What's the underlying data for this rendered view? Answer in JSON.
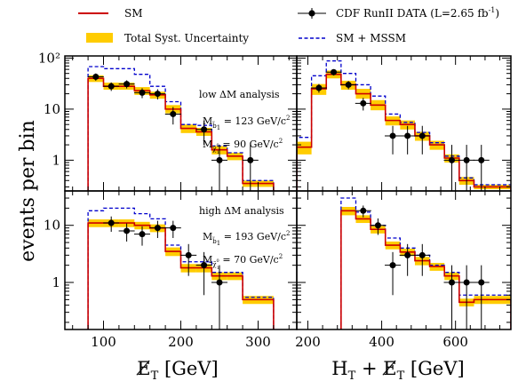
{
  "legend": {
    "sm": "SM",
    "syst": "Total Syst. Uncertainty",
    "data": "CDF RunII DATA (L=2.65 fb",
    "data_sup": "-1",
    "data_close": ")",
    "mssm": "SM + MSSM"
  },
  "y_axis_label": "events per bin",
  "x_axis_titles": {
    "left": "E̸",
    "left_sub": "T",
    "left_unit": " [GeV]",
    "right_pre": "H",
    "right_pre_sub": "T",
    "right_mid": " + E̸",
    "right_mid_sub": "T",
    "right_unit": " [GeV]"
  },
  "annotations": {
    "top": {
      "analysis": "low ΔM analysis",
      "m_sb_label": "M",
      "m_sb_sub": "b̃",
      "m_sb_subsub": "1",
      "m_sb_value": " = 123 GeV/c",
      "m_sb_sup": "2",
      "m_chi_label": "M",
      "m_chi_sub": "χ̃",
      "m_chi_subsup": "0",
      "m_chi_subsub": "1",
      "m_chi_value": " = 90 GeV/c",
      "m_chi_sup": "2"
    },
    "bottom": {
      "analysis": "high ΔM analysis",
      "m_sb_label": "M",
      "m_sb_sub": "b̃",
      "m_sb_subsub": "1",
      "m_sb_value": " = 193 GeV/c",
      "m_sb_sup": "2",
      "m_chi_label": "M",
      "m_chi_sub": "χ̃",
      "m_chi_subsup": "0",
      "m_chi_subsub": "1",
      "m_chi_value": " = 70 GeV/c",
      "m_chi_sup": "2"
    }
  },
  "colors": {
    "sm": "#cc0000",
    "syst": "#ffcc00",
    "mssm": "#0000cc",
    "data": "#000000"
  },
  "chart_data": [
    {
      "panel": "top-left",
      "type": "histogram",
      "y_scale": "log",
      "xlim": [
        50,
        350
      ],
      "ylim": [
        0.25,
        110
      ],
      "x_ticks": [
        100,
        200,
        300
      ],
      "x_tick_labels": [],
      "y_ticks": [
        1,
        10,
        100
      ],
      "y_tick_labels": [
        "1",
        "10",
        "10²"
      ],
      "bin_edges": [
        80,
        100,
        120,
        140,
        160,
        180,
        200,
        220,
        240,
        260,
        280,
        300,
        320
      ],
      "sm": [
        40,
        28,
        28,
        23,
        19,
        10,
        4.2,
        3.6,
        1.6,
        1.2,
        0.35,
        0.35
      ],
      "syst_low": [
        34,
        24,
        24,
        19,
        16,
        8.3,
        3.4,
        3.0,
        1.3,
        1.0,
        0.3,
        0.3
      ],
      "syst_high": [
        46,
        33,
        33,
        27,
        22,
        12,
        5.0,
        4.3,
        1.9,
        1.4,
        0.4,
        0.4
      ],
      "sm_mssm": [
        68,
        62,
        62,
        48,
        28,
        14,
        5.0,
        4.8,
        1.9,
        1.4,
        0.4,
        0.4
      ],
      "data": [
        {
          "x": 90,
          "y": 43,
          "err": 7
        },
        {
          "x": 110,
          "y": 28,
          "err": 5.3
        },
        {
          "x": 130,
          "y": 31,
          "err": 5.6
        },
        {
          "x": 150,
          "y": 21,
          "err": 4.6
        },
        {
          "x": 170,
          "y": 20,
          "err": 4.5
        },
        {
          "x": 190,
          "y": 8,
          "err": 3
        },
        {
          "x": 230,
          "y": 4,
          "err": 2
        },
        {
          "x": 250,
          "y": 1,
          "err": 1
        },
        {
          "x": 290,
          "y": 1,
          "err": 1
        }
      ]
    },
    {
      "panel": "top-right",
      "type": "histogram",
      "y_scale": "log",
      "xlim": [
        170,
        750
      ],
      "ylim": [
        0.25,
        110
      ],
      "x_ticks": [
        200,
        400,
        600
      ],
      "x_tick_labels": [],
      "y_ticks": [
        1,
        10,
        100
      ],
      "y_tick_labels": [],
      "bin_edges": [
        170,
        210,
        250,
        290,
        330,
        370,
        410,
        450,
        490,
        530,
        570,
        610,
        650,
        690,
        750
      ],
      "sm": [
        1.8,
        25,
        48,
        30,
        20,
        12,
        6,
        5,
        3,
        2,
        1.1,
        0.4,
        0.3,
        0.3
      ],
      "syst_low": [
        1.3,
        19,
        40,
        24,
        16,
        9.5,
        4.8,
        4.0,
        2.4,
        1.6,
        0.9,
        0.33,
        0.27,
        0.27
      ],
      "syst_high": [
        2.3,
        31,
        57,
        36,
        25,
        15,
        7.2,
        6.0,
        3.6,
        2.4,
        1.3,
        0.47,
        0.33,
        0.33
      ],
      "sm_mssm": [
        2.8,
        45,
        88,
        50,
        30,
        18,
        8,
        5.5,
        3.5,
        2.2,
        1.2,
        0.45,
        0.33,
        0.33
      ],
      "data": [
        {
          "x": 230,
          "y": 26,
          "err": 5
        },
        {
          "x": 270,
          "y": 53,
          "err": 7.3
        },
        {
          "x": 310,
          "y": 30,
          "err": 5.5
        },
        {
          "x": 350,
          "y": 13,
          "err": 3.6
        },
        {
          "x": 430,
          "y": 3,
          "err": 1.7
        },
        {
          "x": 470,
          "y": 3,
          "err": 1.7
        },
        {
          "x": 510,
          "y": 3,
          "err": 1.7
        },
        {
          "x": 590,
          "y": 1,
          "err": 1
        },
        {
          "x": 630,
          "y": 1,
          "err": 1
        },
        {
          "x": 670,
          "y": 1,
          "err": 1
        }
      ]
    },
    {
      "panel": "bottom-left",
      "type": "histogram",
      "y_scale": "log",
      "xlim": [
        50,
        350
      ],
      "ylim": [
        0.15,
        40
      ],
      "x_ticks": [
        100,
        200,
        300
      ],
      "x_tick_labels": [
        "100",
        "200",
        "300"
      ],
      "y_ticks": [
        1,
        10
      ],
      "y_tick_labels": [
        "1",
        "10"
      ],
      "bin_edges": [
        80,
        100,
        120,
        140,
        160,
        180,
        200,
        220,
        240,
        260,
        280,
        300,
        320
      ],
      "sm": [
        11,
        11,
        11,
        10,
        9,
        3.5,
        1.8,
        1.8,
        1.3,
        1.3,
        0.5,
        0.5
      ],
      "syst_low": [
        9.3,
        9.3,
        9.3,
        8.5,
        7.6,
        2.9,
        1.5,
        1.5,
        1.1,
        1.1,
        0.42,
        0.42
      ],
      "syst_high": [
        12.7,
        12.7,
        12.7,
        11.5,
        10.4,
        4.1,
        2.1,
        2.1,
        1.5,
        1.5,
        0.58,
        0.58
      ],
      "sm_mssm": [
        18,
        20,
        20,
        16,
        13,
        4.5,
        2.3,
        2.3,
        1.5,
        1.5,
        0.55,
        0.55
      ],
      "data": [
        {
          "x": 110,
          "y": 11,
          "err": 3.3
        },
        {
          "x": 130,
          "y": 8,
          "err": 2.8
        },
        {
          "x": 150,
          "y": 7,
          "err": 2.6
        },
        {
          "x": 170,
          "y": 9,
          "err": 3
        },
        {
          "x": 190,
          "y": 9,
          "err": 3
        },
        {
          "x": 210,
          "y": 3,
          "err": 1.7
        },
        {
          "x": 230,
          "y": 2,
          "err": 1.4
        },
        {
          "x": 250,
          "y": 1,
          "err": 1
        }
      ]
    },
    {
      "panel": "bottom-right",
      "type": "histogram",
      "y_scale": "log",
      "xlim": [
        170,
        750
      ],
      "ylim": [
        0.15,
        40
      ],
      "x_ticks": [
        200,
        400,
        600
      ],
      "x_tick_labels": [
        "200",
        "400",
        "600"
      ],
      "y_ticks": [
        1,
        10
      ],
      "y_tick_labels": [],
      "bin_edges": [
        290,
        330,
        370,
        410,
        450,
        490,
        530,
        570,
        610,
        650,
        690,
        750
      ],
      "sm": [
        18,
        13,
        8.5,
        4.5,
        3.4,
        2.4,
        1.9,
        1.3,
        0.45,
        0.5,
        0.5
      ],
      "syst_low": [
        15,
        11,
        7.2,
        3.8,
        2.9,
        2.0,
        1.6,
        1.1,
        0.38,
        0.42,
        0.42
      ],
      "syst_high": [
        21,
        15,
        9.8,
        5.2,
        3.9,
        2.8,
        2.2,
        1.5,
        0.52,
        0.58,
        0.58
      ],
      "sm_mssm": [
        30,
        17,
        10,
        6,
        4,
        3,
        2,
        1.5,
        0.6,
        0.6,
        0.6
      ],
      "data": [
        {
          "x": 350,
          "y": 18,
          "err": 4.2
        },
        {
          "x": 390,
          "y": 10,
          "err": 3.2
        },
        {
          "x": 430,
          "y": 2,
          "err": 1.4
        },
        {
          "x": 470,
          "y": 3,
          "err": 1.7
        },
        {
          "x": 510,
          "y": 3,
          "err": 1.7
        },
        {
          "x": 590,
          "y": 1,
          "err": 1
        },
        {
          "x": 630,
          "y": 1,
          "err": 1
        },
        {
          "x": 670,
          "y": 1,
          "err": 1
        }
      ]
    }
  ]
}
